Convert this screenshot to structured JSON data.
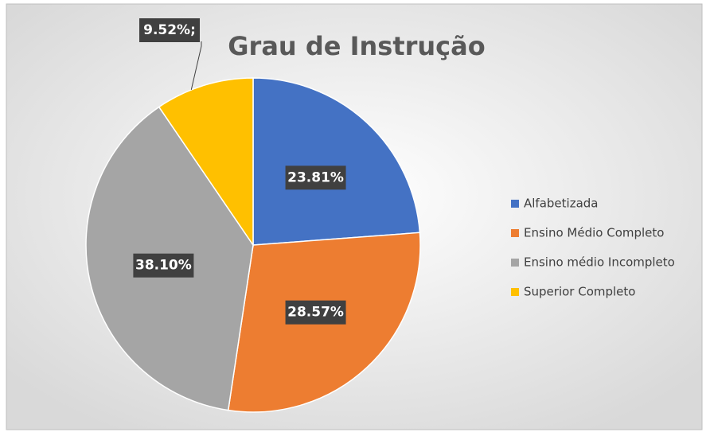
{
  "chart_data": {
    "type": "pie",
    "title": "Grau de Instrução",
    "categories": [
      "Alfabetizada",
      "Ensino Médio Completo",
      "Ensino médio Incompleto",
      "Superior Completo"
    ],
    "values": [
      23.81,
      28.57,
      38.1,
      9.52
    ],
    "value_labels": [
      "23.81%",
      "28.57%",
      "38.10%",
      "9.52%;"
    ],
    "colors": [
      "#4472c4",
      "#ed7d31",
      "#a5a5a5",
      "#ffc000"
    ],
    "legend": "right"
  }
}
